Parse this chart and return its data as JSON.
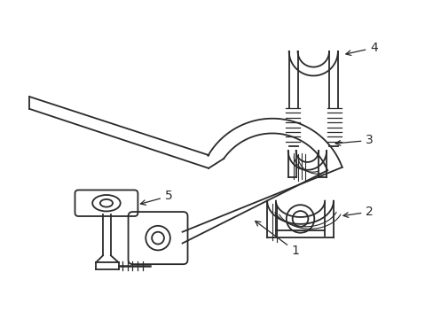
{
  "background_color": "#ffffff",
  "line_color": "#2a2a2a",
  "label_color": "#111111",
  "lw": 1.3,
  "fig_width": 4.89,
  "fig_height": 3.6,
  "dpi": 100
}
